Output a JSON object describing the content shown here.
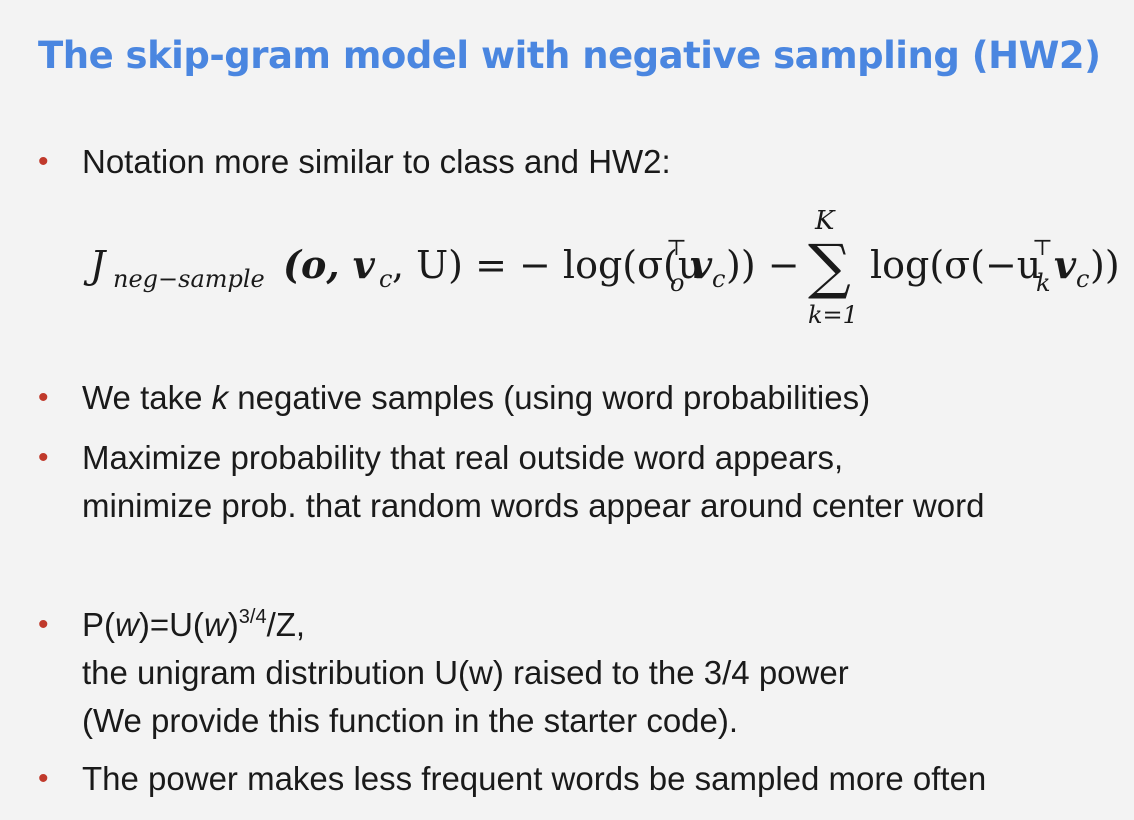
{
  "title": "The skip-gram model with negative sampling (HW2)",
  "bullet1": {
    "text": "Notation more similar to class and HW2:"
  },
  "formula": {
    "J": "J",
    "subscript": "neg−sample",
    "args": "(o, v",
    "c1": "c",
    "args_end": ", U) = − log(σ(u",
    "o_sub": "o",
    "T1": "⊤",
    "v1": "v",
    "c2": "c",
    "mid": ")) −",
    "sum_symbol": "∑",
    "sum_upper": "K",
    "sum_lower": "k=1",
    "log2": "log(σ(−u",
    "k_sub": "k",
    "T2": "⊤",
    "v2": "v",
    "c3": "c",
    "end": "))"
  },
  "bullet2": {
    "prefix": "We take ",
    "k": "k",
    "suffix": " negative samples (using word probabilities)"
  },
  "bullet3": {
    "line1": "Maximize probability that real outside word appears,",
    "line2": "minimize prob. that random words appear around center word"
  },
  "bullet4": {
    "p1": "P(",
    "w1": "w",
    "p2": ")=U(",
    "w2": "w",
    "p3": ")",
    "exp": "3/4",
    "p4": "/Z,",
    "line2": "the unigram distribution U(w) raised to the 3/4 power",
    "line3": "(We provide this function in the starter code)."
  },
  "bullet5": {
    "text": "The power makes less frequent words be sampled more often"
  },
  "colors": {
    "title": "#4a86e0",
    "bullet": "#c0392b",
    "background": "#f3f3f3"
  }
}
